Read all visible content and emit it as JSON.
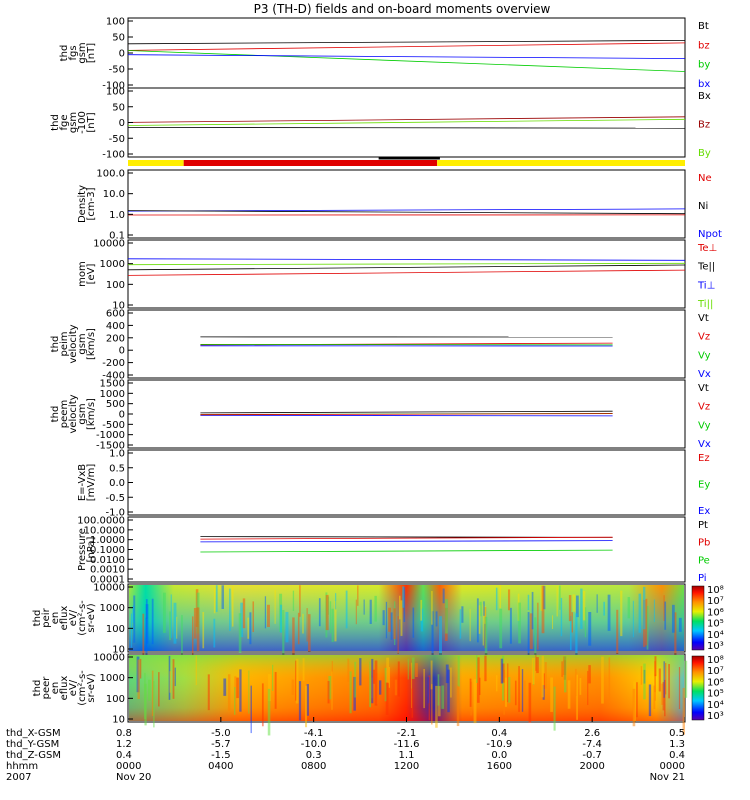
{
  "title": "P3 (TH-D) fields and on-board moments overview",
  "colors": {
    "black": "#000000",
    "red": "#e00000",
    "green": "#00cc00",
    "blue": "#0000ff",
    "darkred": "#990000",
    "lightgreen": "#66dd00",
    "yellow": "#ffee00"
  },
  "chart_data": [
    {
      "type": "line",
      "id": "fgs",
      "ylabel": [
        "thd",
        "fgs",
        "gsm",
        "[nT]"
      ],
      "yticks": [
        "100",
        "50",
        "0",
        "-50",
        "-100"
      ],
      "ylim": [
        -100,
        100
      ],
      "legend": [
        {
          "text": "Bt",
          "color": "black"
        },
        {
          "text": "bz",
          "color": "red"
        },
        {
          "text": "by",
          "color": "green"
        },
        {
          "text": "bx",
          "color": "blue"
        }
      ]
    },
    {
      "type": "line",
      "id": "fge",
      "ylabel": [
        "thd",
        "fge",
        "gsm",
        "-100",
        "[nT]"
      ],
      "yticks": [
        "100",
        "50",
        "0",
        "-50",
        "-100"
      ],
      "ylim": [
        -125,
        100
      ],
      "legend": [
        {
          "text": "Bx",
          "color": "black"
        },
        {
          "text": "Bz",
          "color": "darkred"
        },
        {
          "text": "By",
          "color": "lightgreen"
        }
      ]
    },
    {
      "type": "bar",
      "id": "mode",
      "ylabel": [],
      "yticks": [],
      "segments": [
        {
          "from": 0,
          "to": 0.1,
          "color": "yellow"
        },
        {
          "from": 0.1,
          "to": 0.555,
          "color": "red"
        },
        {
          "from": 0.555,
          "to": 1,
          "color": "yellow"
        }
      ]
    },
    {
      "type": "line",
      "id": "density",
      "ylabel": [
        "Density",
        "[cm-3]"
      ],
      "yticks": [
        "100.0",
        "10.0",
        "1.0",
        "0.1"
      ],
      "ylim": [
        0.1,
        100
      ],
      "legend": [
        {
          "text": "Ne",
          "color": "red"
        },
        {
          "text": "Ni",
          "color": "black"
        },
        {
          "text": "Npot",
          "color": "blue"
        }
      ]
    },
    {
      "type": "line",
      "id": "temp",
      "ylabel": [
        "mom",
        "[eV]"
      ],
      "yticks": [
        "10000",
        "1000",
        "100",
        "10"
      ],
      "ylim": [
        10,
        10000
      ],
      "legend": [
        {
          "text": "Te⊥",
          "color": "red"
        },
        {
          "text": "Te||",
          "color": "black"
        },
        {
          "text": "Ti⊥",
          "color": "blue"
        },
        {
          "text": "Ti||",
          "color": "lightgreen"
        }
      ]
    },
    {
      "type": "line",
      "id": "peim",
      "ylabel": [
        "thd",
        "peim",
        "velocity",
        "gsm",
        "[km/s]"
      ],
      "yticks": [
        "600",
        "400",
        "200",
        "0",
        "-200",
        "-400"
      ],
      "ylim": [
        -500,
        600
      ],
      "legend": [
        {
          "text": "Vt",
          "color": "black"
        },
        {
          "text": "Vz",
          "color": "red"
        },
        {
          "text": "Vy",
          "color": "green"
        },
        {
          "text": "Vx",
          "color": "blue"
        }
      ]
    },
    {
      "type": "line",
      "id": "peem",
      "ylabel": [
        "thd",
        "peem",
        "velocity",
        "gsm",
        "[km/s]"
      ],
      "yticks": [
        "1500",
        "1000",
        "500",
        "0",
        "-500",
        "-1000",
        "-1500"
      ],
      "ylim": [
        -1500,
        1500
      ],
      "legend": [
        {
          "text": "Vt",
          "color": "black"
        },
        {
          "text": "Vz",
          "color": "red"
        },
        {
          "text": "Vy",
          "color": "green"
        },
        {
          "text": "Vx",
          "color": "blue"
        }
      ]
    },
    {
      "type": "line",
      "id": "efield",
      "ylabel": [
        "E=-VxB",
        "[mV/m]"
      ],
      "yticks": [
        "1.0",
        "0.5",
        "0.0",
        "-0.5",
        "-1.0"
      ],
      "ylim": [
        -1,
        1
      ],
      "legend": [
        {
          "text": "Ez",
          "color": "red"
        },
        {
          "text": "Ey",
          "color": "green"
        },
        {
          "text": "Ex",
          "color": "blue"
        }
      ]
    },
    {
      "type": "line",
      "id": "pressure",
      "ylabel": [
        "Pressure",
        "[nPa]"
      ],
      "yticks": [
        "100.0000",
        "10.0000",
        "1.0000",
        "0.1000",
        "0.0100",
        "0.0010",
        "0.0001"
      ],
      "ylim": [
        0.0001,
        100
      ],
      "legend": [
        {
          "text": "Pt",
          "color": "black"
        },
        {
          "text": "Pb",
          "color": "red"
        },
        {
          "text": "Pe",
          "color": "green"
        },
        {
          "text": "Pi",
          "color": "blue"
        }
      ]
    },
    {
      "type": "heatmap",
      "id": "peir",
      "ylabel": [
        "thd",
        "peir",
        "en",
        "eflux",
        "eV/",
        "(cm²-s-",
        "sr-eV)"
      ],
      "yticks": [
        "10000",
        "1000",
        "100",
        "10"
      ],
      "ylim": [
        10,
        20000
      ],
      "colorbar": [
        "10⁸",
        "10⁷",
        "10⁶",
        "10⁵",
        "10⁴",
        "10³"
      ]
    },
    {
      "type": "heatmap",
      "id": "peer",
      "ylabel": [
        "thd",
        "peer",
        "en",
        "eflux",
        "eV/",
        "(cm²-s-",
        "sr-eV)"
      ],
      "yticks": [
        "10000",
        "1000",
        "100",
        "10"
      ],
      "ylim": [
        10,
        20000
      ],
      "colorbar": [
        "10⁸",
        "10⁷",
        "10⁶",
        "10⁵",
        "10⁴",
        "10³"
      ]
    }
  ],
  "xaxis": {
    "rows": [
      {
        "label": "thd_X-GSM",
        "values": [
          "0.8",
          "-5.0",
          "-4.1",
          "-2.1",
          "0.4",
          "2.6",
          "0.5"
        ]
      },
      {
        "label": "thd_Y-GSM",
        "values": [
          "1.2",
          "-5.7",
          "-10.0",
          "-11.6",
          "-10.9",
          "-7.4",
          "1.3"
        ]
      },
      {
        "label": "thd_Z-GSM",
        "values": [
          "0.4",
          "-1.5",
          "0.3",
          "1.1",
          "0.0",
          "-0.7",
          "0.4"
        ]
      },
      {
        "label": "hhmm",
        "values": [
          "0000",
          "0400",
          "0800",
          "1200",
          "1600",
          "2000",
          "0000"
        ]
      },
      {
        "label": "2007",
        "values": [
          "Nov 20",
          "",
          "",
          "",
          "",
          "",
          "Nov 21"
        ]
      }
    ],
    "hour_positions": [
      0,
      4,
      8,
      12,
      16,
      20,
      24
    ]
  }
}
